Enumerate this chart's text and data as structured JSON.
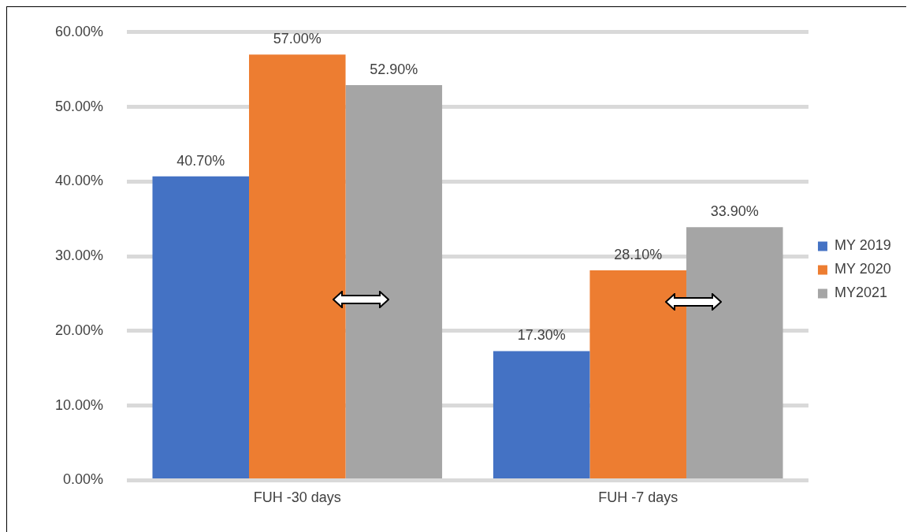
{
  "chart_data": {
    "type": "bar",
    "categories": [
      "FUH -30 days",
      "FUH -7 days"
    ],
    "series": [
      {
        "name": "MY 2019",
        "color": "#4472c4",
        "values": [
          40.7,
          17.3
        ],
        "value_labels": [
          "40.70%",
          "17.30%"
        ]
      },
      {
        "name": "MY 2020",
        "color": "#ed7d31",
        "values": [
          57.0,
          28.1
        ],
        "value_labels": [
          "57.00%",
          "28.10%"
        ]
      },
      {
        "name": "MY2021",
        "color": "#a5a5a5",
        "values": [
          52.9,
          33.9
        ],
        "value_labels": [
          "52.90%",
          "33.90%"
        ]
      }
    ],
    "ylim": [
      0,
      60
    ],
    "yticks": [
      {
        "value": 0,
        "label": "0.00%"
      },
      {
        "value": 10,
        "label": "10.00%"
      },
      {
        "value": 20,
        "label": "20.00%"
      },
      {
        "value": 30,
        "label": "30.00%"
      },
      {
        "value": 40,
        "label": "40.00%"
      },
      {
        "value": 50,
        "label": "50.00%"
      },
      {
        "value": 60,
        "label": "60.00%"
      }
    ],
    "grid": "y",
    "legend": "right"
  }
}
